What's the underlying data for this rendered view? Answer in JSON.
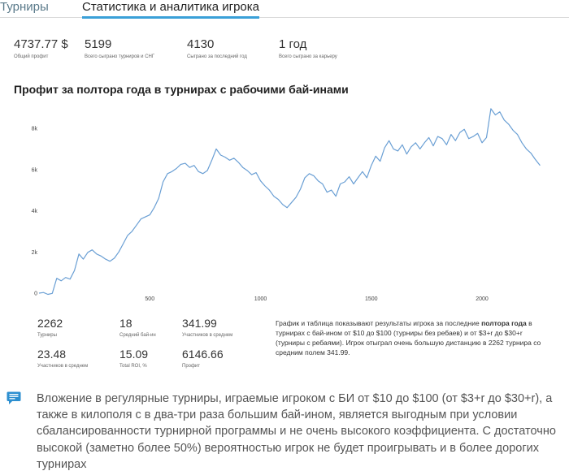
{
  "tabs": {
    "tournaments": "Турниры",
    "stats": "Статистика и аналитика игрока"
  },
  "summary": [
    {
      "value": "4737.77 $",
      "label": "Общий профит"
    },
    {
      "value": "5199",
      "label": "Всего сыграно турниров и СНГ"
    },
    {
      "value": "4130",
      "label": "Сыграно за последний год"
    },
    {
      "value": "1 год",
      "label": "Всего сыграно за карьеру"
    }
  ],
  "chart_title": "Профит за полтора года в турнирах с рабочими бай-инами",
  "chart_data": {
    "type": "line",
    "x_ticks": [
      "500",
      "1000",
      "1500",
      "2000"
    ],
    "y_ticks": [
      "0",
      "2k",
      "4k",
      "6k",
      "8k"
    ],
    "xlim": [
      0,
      2262
    ],
    "ylim": [
      0,
      9000
    ],
    "line_color": "#6a9fd4",
    "points": [
      [
        0,
        0
      ],
      [
        20,
        30
      ],
      [
        40,
        -60
      ],
      [
        60,
        -10
      ],
      [
        80,
        720
      ],
      [
        100,
        600
      ],
      [
        120,
        760
      ],
      [
        140,
        680
      ],
      [
        160,
        1100
      ],
      [
        180,
        1900
      ],
      [
        200,
        1650
      ],
      [
        220,
        1980
      ],
      [
        240,
        2100
      ],
      [
        260,
        1900
      ],
      [
        280,
        1800
      ],
      [
        300,
        1650
      ],
      [
        320,
        1550
      ],
      [
        340,
        1700
      ],
      [
        360,
        2000
      ],
      [
        380,
        2400
      ],
      [
        400,
        2800
      ],
      [
        420,
        3000
      ],
      [
        440,
        3300
      ],
      [
        460,
        3600
      ],
      [
        480,
        3700
      ],
      [
        500,
        3800
      ],
      [
        520,
        4150
      ],
      [
        540,
        4600
      ],
      [
        560,
        5400
      ],
      [
        580,
        5800
      ],
      [
        600,
        5900
      ],
      [
        620,
        6050
      ],
      [
        640,
        6250
      ],
      [
        660,
        6300
      ],
      [
        680,
        6100
      ],
      [
        700,
        6200
      ],
      [
        720,
        5900
      ],
      [
        740,
        5800
      ],
      [
        760,
        5950
      ],
      [
        780,
        6450
      ],
      [
        800,
        7000
      ],
      [
        820,
        6700
      ],
      [
        840,
        6600
      ],
      [
        860,
        6450
      ],
      [
        880,
        6550
      ],
      [
        900,
        6350
      ],
      [
        920,
        6100
      ],
      [
        940,
        5950
      ],
      [
        960,
        5750
      ],
      [
        980,
        5850
      ],
      [
        1000,
        5450
      ],
      [
        1020,
        5200
      ],
      [
        1040,
        5000
      ],
      [
        1060,
        4700
      ],
      [
        1080,
        4550
      ],
      [
        1100,
        4300
      ],
      [
        1120,
        4150
      ],
      [
        1140,
        4400
      ],
      [
        1160,
        4650
      ],
      [
        1180,
        5050
      ],
      [
        1200,
        5600
      ],
      [
        1220,
        5800
      ],
      [
        1240,
        5700
      ],
      [
        1260,
        5450
      ],
      [
        1280,
        5300
      ],
      [
        1300,
        4900
      ],
      [
        1320,
        5000
      ],
      [
        1340,
        4700
      ],
      [
        1360,
        5300
      ],
      [
        1380,
        5400
      ],
      [
        1400,
        5650
      ],
      [
        1420,
        5300
      ],
      [
        1440,
        5600
      ],
      [
        1460,
        5900
      ],
      [
        1480,
        5600
      ],
      [
        1500,
        6200
      ],
      [
        1520,
        6650
      ],
      [
        1540,
        6400
      ],
      [
        1560,
        7050
      ],
      [
        1580,
        7400
      ],
      [
        1600,
        7000
      ],
      [
        1620,
        6900
      ],
      [
        1640,
        7200
      ],
      [
        1660,
        6750
      ],
      [
        1680,
        7100
      ],
      [
        1700,
        7300
      ],
      [
        1720,
        7000
      ],
      [
        1740,
        7300
      ],
      [
        1760,
        7550
      ],
      [
        1780,
        7150
      ],
      [
        1800,
        7600
      ],
      [
        1820,
        7500
      ],
      [
        1840,
        7200
      ],
      [
        1860,
        7700
      ],
      [
        1880,
        7400
      ],
      [
        1900,
        7800
      ],
      [
        1920,
        7950
      ],
      [
        1940,
        7500
      ],
      [
        1960,
        7600
      ],
      [
        1980,
        7750
      ],
      [
        2000,
        7300
      ],
      [
        2020,
        7550
      ],
      [
        2040,
        8950
      ],
      [
        2060,
        8650
      ],
      [
        2080,
        8800
      ],
      [
        2100,
        8400
      ],
      [
        2120,
        8200
      ],
      [
        2140,
        7900
      ],
      [
        2160,
        7700
      ],
      [
        2180,
        7300
      ],
      [
        2200,
        7000
      ],
      [
        2220,
        6800
      ],
      [
        2240,
        6500
      ],
      [
        2262,
        6200
      ]
    ]
  },
  "details": [
    {
      "value": "2262",
      "label": "Турниры"
    },
    {
      "value": "18",
      "label": "Средний бай-ин"
    },
    {
      "value": "341.99",
      "label": "Участников в среднем"
    },
    {
      "value": "23.48",
      "label": "Участников в среднем"
    },
    {
      "value": "15.09",
      "label": "Total ROI, %"
    },
    {
      "value": "6146.66",
      "label": "Профит"
    }
  ],
  "description": {
    "part1": "График и таблица показывают результаты игрока за последние ",
    "bold": "полтора года",
    "part2": " в турнирах с бай-ином от $10 до $100 (турниры без ребаев) и от $3+r до $30+r (турниры с ребаями). Игрок отыграл очень большую дистанцию в 2262 турнира со средним полем 341.99."
  },
  "comment": {
    "icon": "comment-icon",
    "text": "Вложение в регулярные турниры, играемые игроком с БИ от $10 до $100 (от $3+r до $30+r), а также в килополя с в два-три раза большим бай-ином, является выгодным при условии сбалансированности турнирной программы и не очень высокого коэффициента. С достаточно высокой (заметно более 50%) вероятностью игрок не будет проигрывать и в более дорогих турнирах"
  },
  "colors": {
    "accent": "#3aa0d8",
    "comment_icon": "#2c8fd0"
  }
}
